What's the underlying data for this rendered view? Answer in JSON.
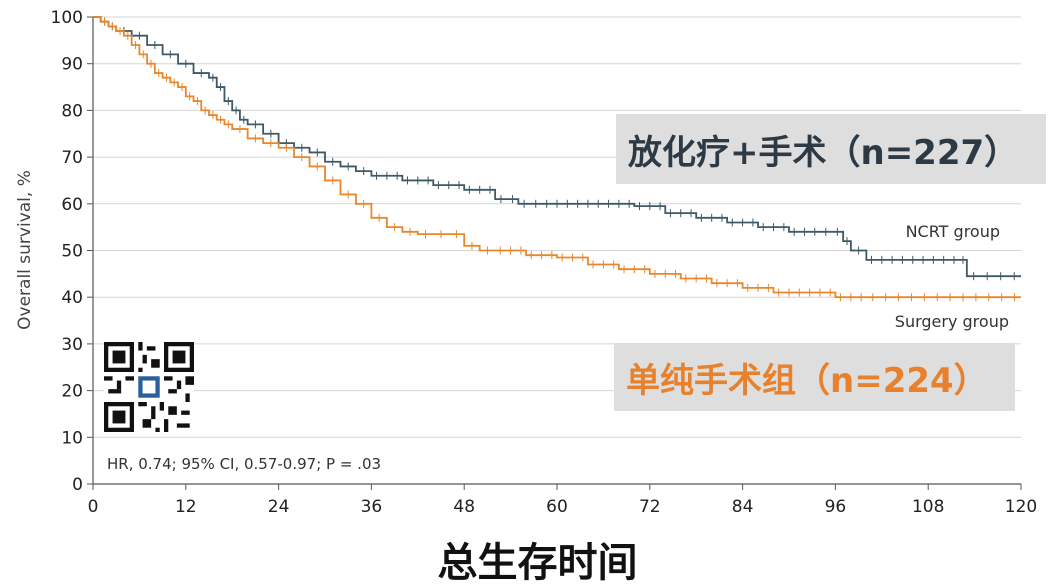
{
  "chart_data": {
    "type": "line",
    "subtype": "kaplan-meier",
    "xlabel": "总生存时间",
    "ylabel": "Overall survival, %",
    "xlim": [
      0,
      120
    ],
    "ylim": [
      0,
      100
    ],
    "xticks": [
      0,
      12,
      24,
      36,
      48,
      60,
      72,
      84,
      96,
      108,
      120
    ],
    "yticks": [
      0,
      10,
      20,
      30,
      40,
      50,
      60,
      70,
      80,
      90,
      100
    ],
    "grid": "horizontal",
    "stats_text": "HR, 0.74; 95% CI, 0.57-0.97; P = .03",
    "series": [
      {
        "name": "NCRT group",
        "color": "#3f5866",
        "x": [
          0,
          1,
          2,
          3,
          5,
          7,
          9,
          11,
          13,
          15,
          16,
          17,
          18,
          19,
          20,
          22,
          24,
          26,
          28,
          30,
          32,
          34,
          36,
          40,
          44,
          48,
          52,
          55,
          58,
          62,
          66,
          70,
          74,
          78,
          82,
          86,
          90,
          94,
          97,
          98,
          100,
          104,
          108,
          112,
          113,
          120
        ],
        "y": [
          100,
          99,
          98,
          97,
          96,
          94,
          92,
          90,
          88,
          87,
          85,
          82,
          80,
          78,
          77,
          75,
          73,
          72,
          71,
          69,
          68,
          67,
          66,
          65,
          64,
          63,
          61,
          60,
          60,
          60,
          60,
          59.5,
          58,
          57,
          56,
          55,
          54,
          54,
          52,
          50,
          48,
          48,
          48,
          48,
          44.5,
          44.5
        ]
      },
      {
        "name": "Surgery group",
        "color": "#e8872e",
        "x": [
          0,
          1,
          2,
          3,
          4,
          5,
          6,
          7,
          8,
          9,
          10,
          11,
          12,
          13,
          14,
          15,
          16,
          17,
          18,
          20,
          22,
          24,
          26,
          28,
          30,
          32,
          34,
          36,
          38,
          40,
          42,
          44,
          46,
          48,
          50,
          52,
          56,
          60,
          64,
          68,
          72,
          76,
          80,
          84,
          88,
          92,
          96,
          100,
          110,
          120
        ],
        "y": [
          100,
          99,
          98,
          97,
          96,
          94,
          92,
          90,
          88,
          87,
          86,
          85,
          83,
          82,
          80,
          79,
          78,
          77,
          76,
          74,
          73,
          72,
          70,
          68,
          65,
          62,
          60,
          57,
          55,
          54,
          53.5,
          53.5,
          53.5,
          51,
          50,
          50,
          49,
          48.5,
          47,
          46,
          45,
          44,
          43,
          42,
          41,
          41,
          40,
          40,
          40,
          40
        ]
      }
    ]
  },
  "labels": {
    "ncrt_line_label": "NCRT group",
    "surgery_line_label": "Surgery group",
    "ncrt_banner": "放化疗+手术（n=227）",
    "surgery_banner": "单纯手术组（n=224）"
  },
  "qr": {
    "description": "qr-code-logo"
  }
}
